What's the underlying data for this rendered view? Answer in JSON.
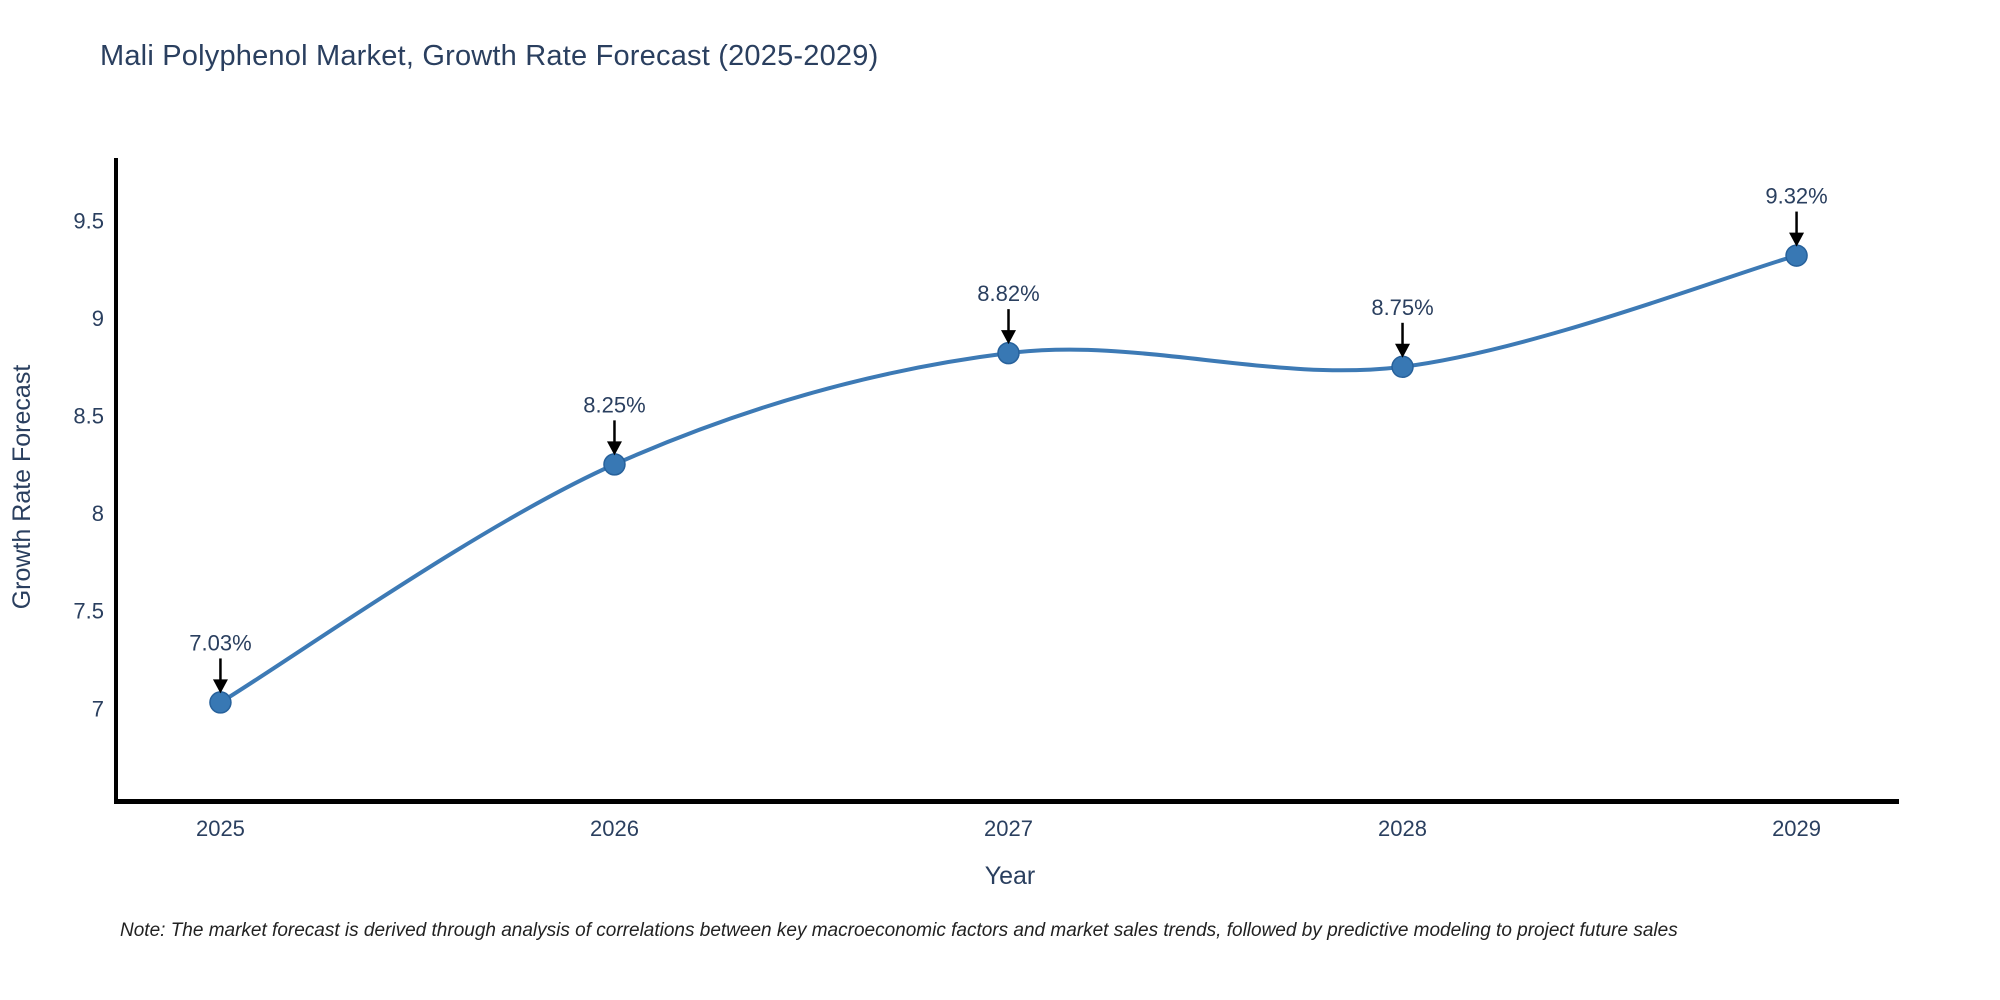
{
  "title": "Mali Polyphenol Market, Growth Rate Forecast (2025-2029)",
  "note": "Note: The market forecast is derived through analysis of correlations between key macroeconomic factors and market sales trends, followed by predictive modeling to project future sales",
  "chart_data": {
    "type": "line",
    "title": "Mali Polyphenol Market, Growth Rate Forecast (2025-2029)",
    "x": [
      2025,
      2026,
      2027,
      2028,
      2029
    ],
    "values": [
      7.03,
      8.25,
      8.82,
      8.75,
      9.32
    ],
    "point_labels": [
      "7.03%",
      "8.25%",
      "8.82%",
      "8.75%",
      "9.32%"
    ],
    "xlabel": "Year",
    "ylabel": "Growth Rate Forecast",
    "xtick_labels": [
      "2025",
      "2026",
      "2027",
      "2028",
      "2029"
    ],
    "ytick_values": [
      7,
      7.5,
      8,
      8.5,
      9,
      9.5
    ],
    "ytick_labels": [
      "7",
      "7.5",
      "8",
      "8.5",
      "9",
      "9.5"
    ],
    "xlim": [
      2024.74,
      2029.26
    ],
    "ylim": [
      6.53,
      9.82
    ],
    "line_shape": "spline",
    "grid": false,
    "legend": "none",
    "colors": {
      "line": "#3d7ab5",
      "marker_fill": "#3878b4",
      "marker_edge": "#27619b",
      "axis_line": "#000000",
      "text": "#2a3f5f",
      "annotation_arrow": "#000000",
      "background": "#ffffff"
    }
  }
}
